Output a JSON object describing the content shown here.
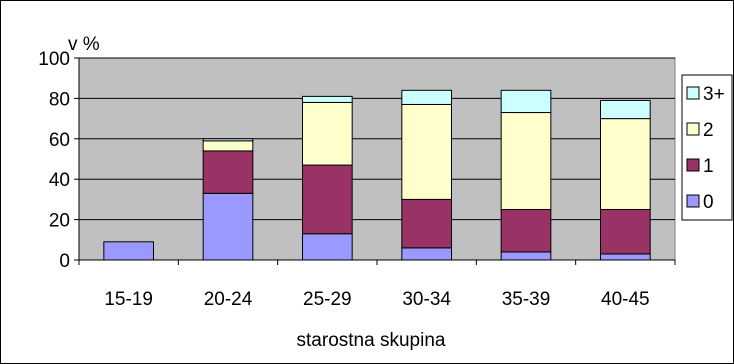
{
  "chart_data": {
    "type": "bar",
    "stacked": true,
    "title": "",
    "xlabel": "starostna skupina",
    "ylabel": "v %",
    "ylim": [
      0,
      100
    ],
    "yticks": [
      0,
      20,
      40,
      60,
      80,
      100
    ],
    "grid": true,
    "legend_position": "right",
    "categories": [
      "15-19",
      "20-24",
      "25-29",
      "30-34",
      "35-39",
      "40-45"
    ],
    "series": [
      {
        "name": "0",
        "color": "#9999FF",
        "values": [
          9,
          33,
          13,
          6,
          4,
          3
        ]
      },
      {
        "name": "1",
        "color": "#993366",
        "values": [
          0,
          21,
          34,
          24,
          21,
          22
        ]
      },
      {
        "name": "2",
        "color": "#FFFFCC",
        "values": [
          0,
          5,
          31,
          47,
          48,
          45
        ]
      },
      {
        "name": "3+",
        "color": "#CCFFFF",
        "values": [
          0,
          1,
          3,
          7,
          11,
          9
        ]
      }
    ],
    "plot_background": "#C0C0C0"
  }
}
